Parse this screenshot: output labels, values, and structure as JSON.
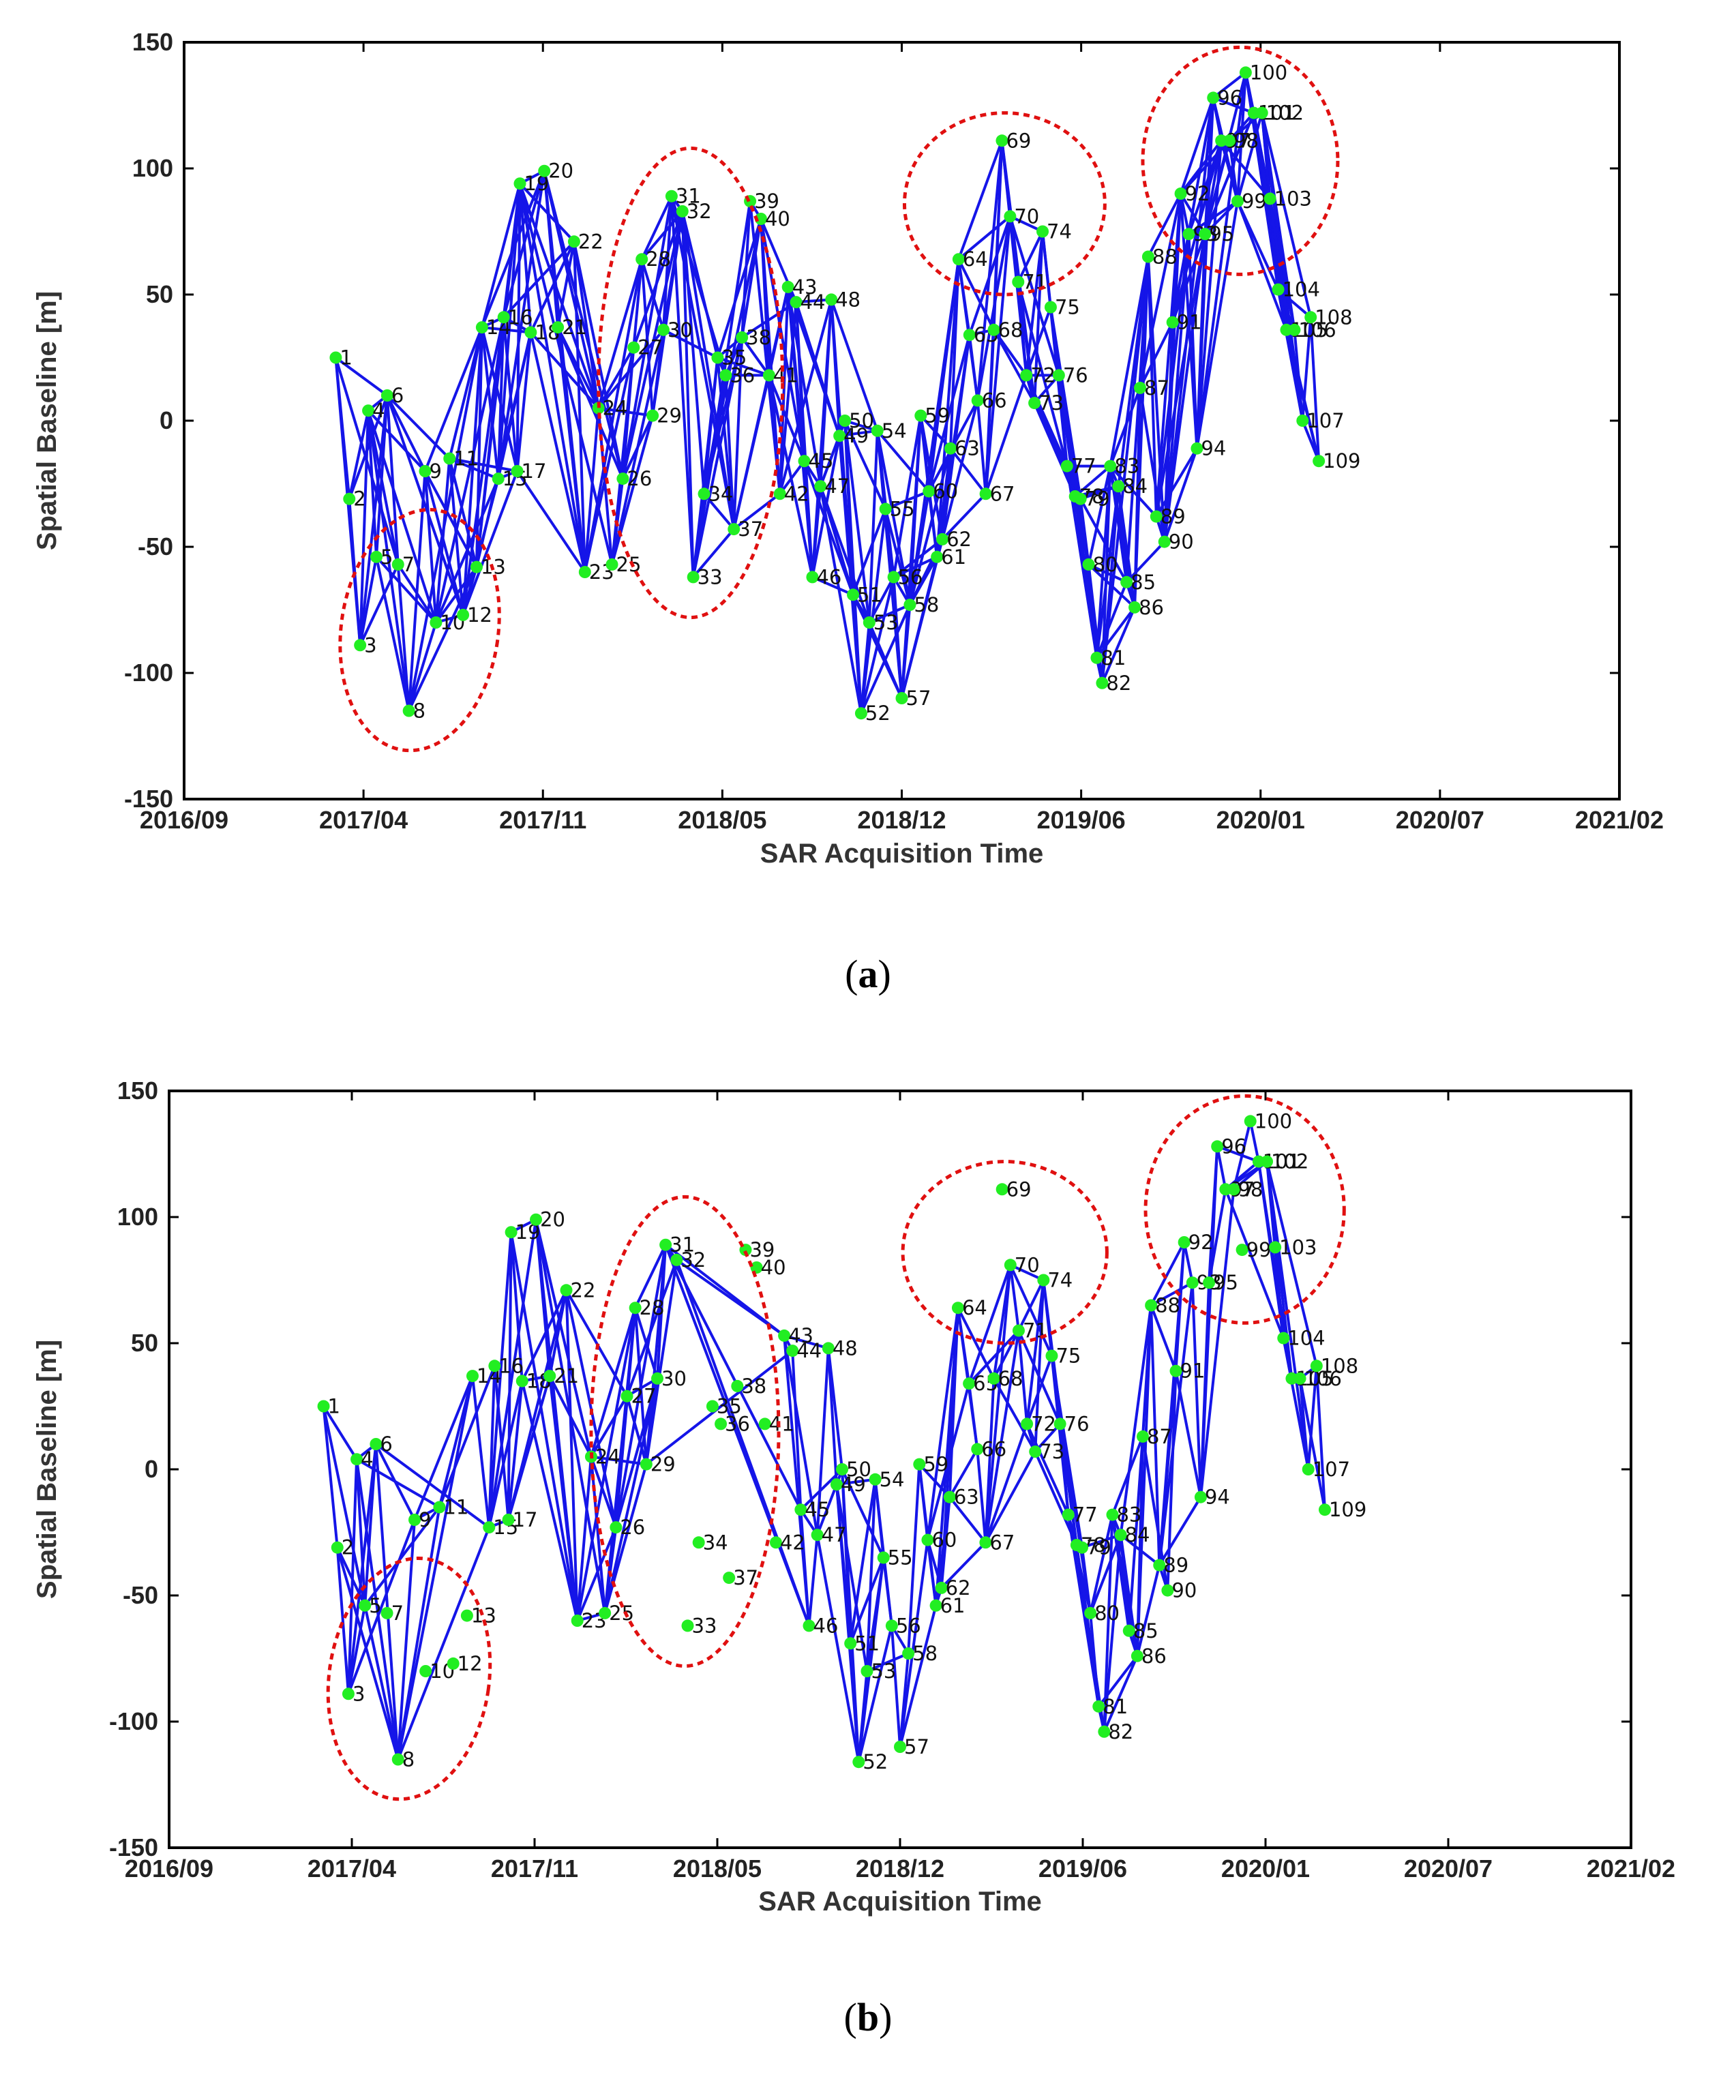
{
  "figure": {
    "colors": {
      "edge": "#1515e8",
      "node": "#22ee22",
      "ellipse": "#e01010",
      "axis": "#000000"
    }
  },
  "chart_data": [
    {
      "type": "scatter",
      "panel": "a",
      "caption_letter": "a",
      "title": "",
      "xlabel": "SAR Acquisition Time",
      "ylabel": "Spatial Baseline [m]",
      "xlim": [
        "2016/09",
        "2021/02"
      ],
      "ylim": [
        -150,
        150
      ],
      "xticks": [
        "2016/09",
        "2017/04",
        "2017/11",
        "2018/05",
        "2018/12",
        "2019/06",
        "2020/01",
        "2020/07",
        "2021/02"
      ],
      "yticks": [
        150,
        100,
        50,
        0,
        -50,
        -100,
        -150
      ],
      "points": [
        {
          "id": "1",
          "t": 5.6,
          "b": 25
        },
        {
          "id": "2",
          "t": 6.1,
          "b": -31
        },
        {
          "id": "3",
          "t": 6.5,
          "b": -89
        },
        {
          "id": "4",
          "t": 6.8,
          "b": 4
        },
        {
          "id": "5",
          "t": 7.1,
          "b": -54
        },
        {
          "id": "6",
          "t": 7.5,
          "b": 10
        },
        {
          "id": "7",
          "t": 7.9,
          "b": -57
        },
        {
          "id": "8",
          "t": 8.3,
          "b": -115
        },
        {
          "id": "9",
          "t": 8.9,
          "b": -20
        },
        {
          "id": "10",
          "t": 9.3,
          "b": -80
        },
        {
          "id": "11",
          "t": 9.8,
          "b": -15
        },
        {
          "id": "12",
          "t": 10.3,
          "b": -77
        },
        {
          "id": "13",
          "t": 10.8,
          "b": -58
        },
        {
          "id": "14",
          "t": 11.0,
          "b": 37
        },
        {
          "id": "15",
          "t": 11.6,
          "b": -23
        },
        {
          "id": "16",
          "t": 11.8,
          "b": 41
        },
        {
          "id": "17",
          "t": 12.3,
          "b": -20
        },
        {
          "id": "18",
          "t": 12.8,
          "b": 35
        },
        {
          "id": "19",
          "t": 12.4,
          "b": 94
        },
        {
          "id": "20",
          "t": 13.3,
          "b": 99
        },
        {
          "id": "21",
          "t": 13.8,
          "b": 37
        },
        {
          "id": "22",
          "t": 14.4,
          "b": 71
        },
        {
          "id": "23",
          "t": 14.8,
          "b": -60
        },
        {
          "id": "24",
          "t": 15.3,
          "b": 5
        },
        {
          "id": "25",
          "t": 15.8,
          "b": -57
        },
        {
          "id": "26",
          "t": 16.2,
          "b": -23
        },
        {
          "id": "27",
          "t": 16.6,
          "b": 29
        },
        {
          "id": "28",
          "t": 16.9,
          "b": 64
        },
        {
          "id": "29",
          "t": 17.3,
          "b": 2
        },
        {
          "id": "30",
          "t": 17.7,
          "b": 36
        },
        {
          "id": "31",
          "t": 18.0,
          "b": 89
        },
        {
          "id": "32",
          "t": 18.4,
          "b": 83
        },
        {
          "id": "33",
          "t": 18.8,
          "b": -62
        },
        {
          "id": "34",
          "t": 19.2,
          "b": -29
        },
        {
          "id": "35",
          "t": 19.7,
          "b": 25
        },
        {
          "id": "36",
          "t": 20.0,
          "b": 18
        },
        {
          "id": "37",
          "t": 20.3,
          "b": -43
        },
        {
          "id": "38",
          "t": 20.6,
          "b": 33
        },
        {
          "id": "39",
          "t": 20.9,
          "b": 87
        },
        {
          "id": "40",
          "t": 21.3,
          "b": 80
        },
        {
          "id": "41",
          "t": 21.6,
          "b": 18
        },
        {
          "id": "42",
          "t": 22.0,
          "b": -29
        },
        {
          "id": "43",
          "t": 22.3,
          "b": 53
        },
        {
          "id": "44",
          "t": 22.6,
          "b": 47
        },
        {
          "id": "45",
          "t": 22.9,
          "b": -16
        },
        {
          "id": "46",
          "t": 23.2,
          "b": -62
        },
        {
          "id": "47",
          "t": 23.5,
          "b": -26
        },
        {
          "id": "48",
          "t": 23.9,
          "b": 48
        },
        {
          "id": "49",
          "t": 24.2,
          "b": -6
        },
        {
          "id": "50",
          "t": 24.4,
          "b": 0
        },
        {
          "id": "51",
          "t": 24.7,
          "b": -69
        },
        {
          "id": "52",
          "t": 25.0,
          "b": -116
        },
        {
          "id": "53",
          "t": 25.3,
          "b": -80
        },
        {
          "id": "54",
          "t": 25.6,
          "b": -4
        },
        {
          "id": "55",
          "t": 25.9,
          "b": -35
        },
        {
          "id": "56",
          "t": 26.2,
          "b": -62
        },
        {
          "id": "57",
          "t": 26.5,
          "b": -110
        },
        {
          "id": "58",
          "t": 26.8,
          "b": -73
        },
        {
          "id": "59",
          "t": 27.2,
          "b": 2
        },
        {
          "id": "60",
          "t": 27.5,
          "b": -28
        },
        {
          "id": "61",
          "t": 27.8,
          "b": -54
        },
        {
          "id": "62",
          "t": 28.0,
          "b": -47
        },
        {
          "id": "63",
          "t": 28.3,
          "b": -11
        },
        {
          "id": "64",
          "t": 28.6,
          "b": 64
        },
        {
          "id": "65",
          "t": 29.0,
          "b": 34
        },
        {
          "id": "66",
          "t": 29.3,
          "b": 8
        },
        {
          "id": "67",
          "t": 29.6,
          "b": -29
        },
        {
          "id": "68",
          "t": 29.9,
          "b": 36
        },
        {
          "id": "69",
          "t": 30.2,
          "b": 111
        },
        {
          "id": "70",
          "t": 30.5,
          "b": 81
        },
        {
          "id": "71",
          "t": 30.8,
          "b": 55
        },
        {
          "id": "72",
          "t": 31.1,
          "b": 18
        },
        {
          "id": "73",
          "t": 31.4,
          "b": 7
        },
        {
          "id": "74",
          "t": 31.7,
          "b": 75
        },
        {
          "id": "75",
          "t": 32.0,
          "b": 45
        },
        {
          "id": "76",
          "t": 32.3,
          "b": 18
        },
        {
          "id": "77",
          "t": 32.6,
          "b": -18
        },
        {
          "id": "78",
          "t": 32.9,
          "b": -30
        },
        {
          "id": "79",
          "t": 33.1,
          "b": -31
        },
        {
          "id": "80",
          "t": 33.4,
          "b": -57
        },
        {
          "id": "81",
          "t": 33.7,
          "b": -94
        },
        {
          "id": "82",
          "t": 33.9,
          "b": -104
        },
        {
          "id": "83",
          "t": 34.2,
          "b": -18
        },
        {
          "id": "84",
          "t": 34.5,
          "b": -26
        },
        {
          "id": "85",
          "t": 34.8,
          "b": -64
        },
        {
          "id": "86",
          "t": 35.1,
          "b": -74
        },
        {
          "id": "87",
          "t": 35.3,
          "b": 13
        },
        {
          "id": "88",
          "t": 35.6,
          "b": 65
        },
        {
          "id": "89",
          "t": 35.9,
          "b": -38
        },
        {
          "id": "90",
          "t": 36.2,
          "b": -48
        },
        {
          "id": "91",
          "t": 36.5,
          "b": 39
        },
        {
          "id": "92",
          "t": 36.8,
          "b": 90
        },
        {
          "id": "93",
          "t": 37.1,
          "b": 74
        },
        {
          "id": "94",
          "t": 37.4,
          "b": -11
        },
        {
          "id": "95",
          "t": 37.7,
          "b": 74
        },
        {
          "id": "96",
          "t": 38.0,
          "b": 128
        },
        {
          "id": "97",
          "t": 38.3,
          "b": 111
        },
        {
          "id": "98",
          "t": 38.6,
          "b": 111
        },
        {
          "id": "99",
          "t": 38.9,
          "b": 87
        },
        {
          "id": "100",
          "t": 39.2,
          "b": 138
        },
        {
          "id": "101",
          "t": 39.5,
          "b": 122
        },
        {
          "id": "102",
          "t": 39.8,
          "b": 122
        },
        {
          "id": "103",
          "t": 40.1,
          "b": 88
        },
        {
          "id": "104",
          "t": 40.4,
          "b": 52
        },
        {
          "id": "105",
          "t": 40.7,
          "b": 36
        },
        {
          "id": "106",
          "t": 41.0,
          "b": 36
        },
        {
          "id": "107",
          "t": 41.3,
          "b": 0
        },
        {
          "id": "108",
          "t": 41.6,
          "b": 41
        },
        {
          "id": "109",
          "t": 41.9,
          "b": -16
        }
      ],
      "ellipses": [
        {
          "tc": 8.7,
          "bc": -83,
          "rt": 2.9,
          "rb": 48,
          "rot": 8
        },
        {
          "tc": 18.7,
          "bc": 15,
          "rt": 3.4,
          "rb": 93,
          "rot": 0
        },
        {
          "tc": 30.3,
          "bc": 86,
          "rt": 3.7,
          "rb": 36,
          "rot": 0
        },
        {
          "tc": 39.0,
          "bc": 103,
          "rt": 3.6,
          "rb": 45,
          "rot": 0
        }
      ],
      "network": "full"
    },
    {
      "type": "scatter",
      "panel": "b",
      "caption_letter": "b",
      "title": "",
      "xlabel": "SAR Acquisition Time",
      "ylabel": "Spatial Baseline [m]",
      "xlim": [
        "2016/09",
        "2021/02"
      ],
      "ylim": [
        -150,
        150
      ],
      "xticks": [
        "2016/09",
        "2017/04",
        "2017/11",
        "2018/05",
        "2018/12",
        "2019/06",
        "2020/01",
        "2020/07",
        "2021/02"
      ],
      "yticks": [
        150,
        100,
        50,
        0,
        -50,
        -100,
        -150
      ],
      "points_ref": "a",
      "isolated_points": [
        "7",
        "10",
        "12",
        "13",
        "33",
        "34",
        "35",
        "36",
        "37",
        "38",
        "39",
        "40",
        "41",
        "42",
        "69",
        "99",
        "103"
      ],
      "ellipses": [
        {
          "tc": 8.7,
          "bc": -83,
          "rt": 2.9,
          "rb": 48,
          "rot": 8
        },
        {
          "tc": 18.7,
          "bc": 15,
          "rt": 3.4,
          "rb": 93,
          "rot": 0
        },
        {
          "tc": 30.3,
          "bc": 86,
          "rt": 3.7,
          "rb": 36,
          "rot": 0
        },
        {
          "tc": 39.0,
          "bc": 103,
          "rt": 3.6,
          "rb": 45,
          "rot": 0
        }
      ],
      "network": "reduced"
    }
  ]
}
